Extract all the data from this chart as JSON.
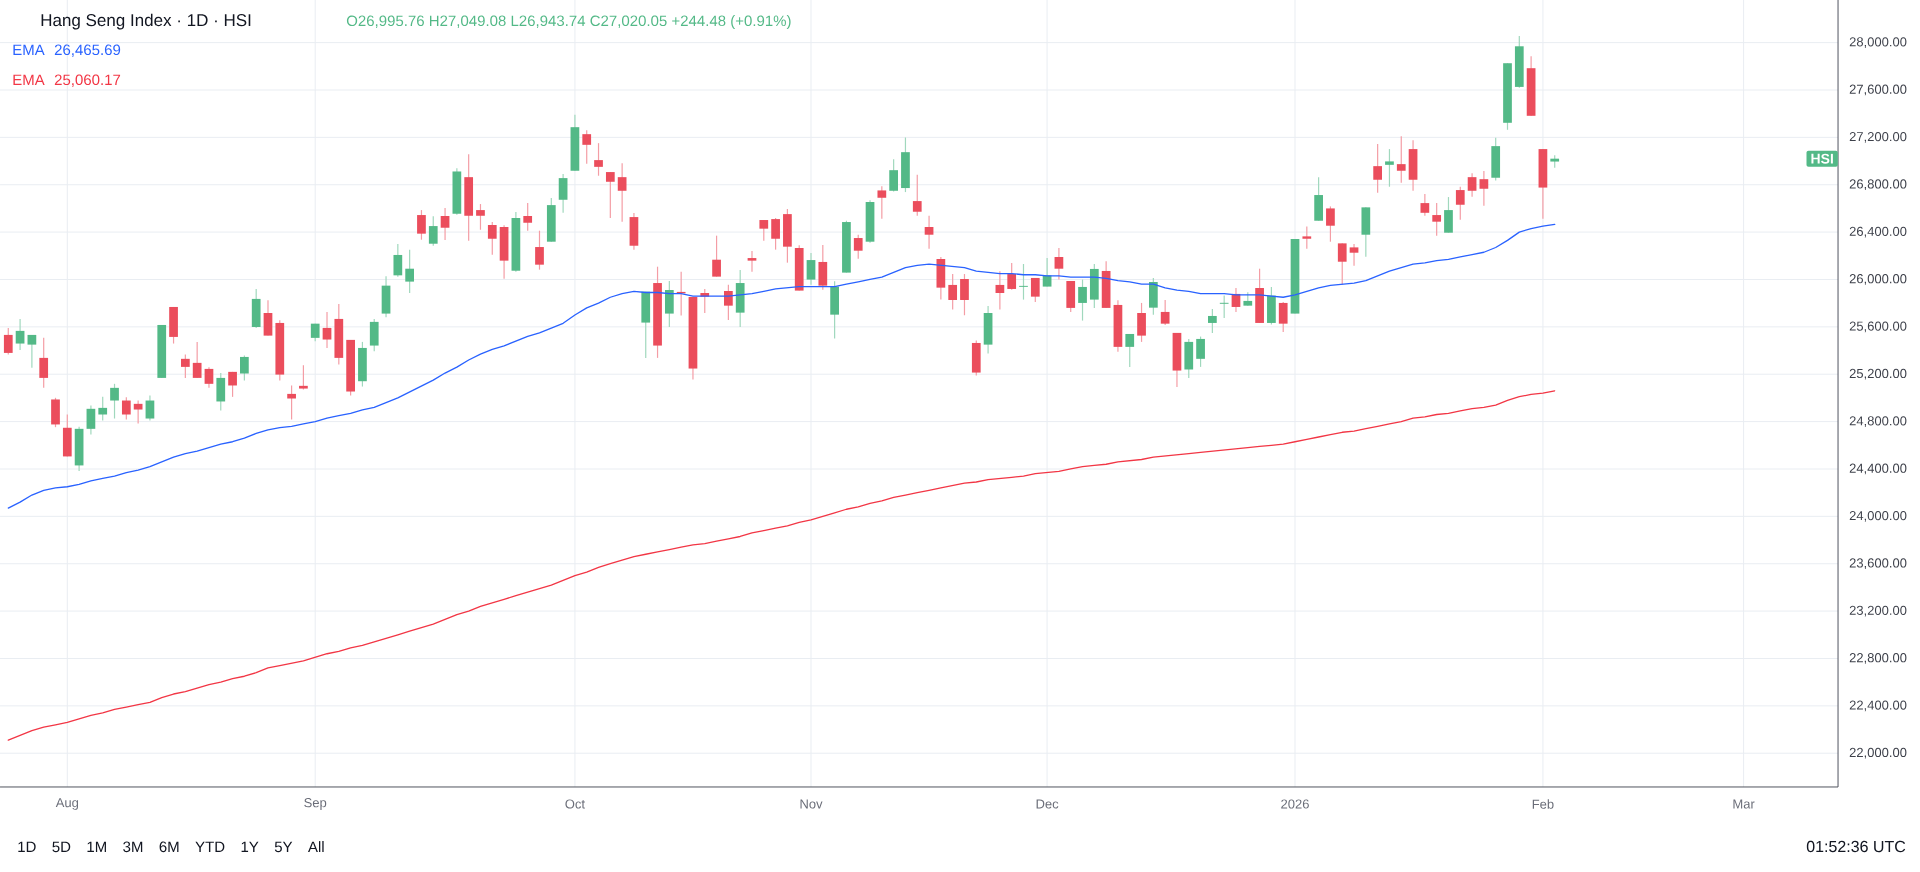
{
  "chart_data": {
    "type": "candlestick",
    "title": "Hang Seng Index · 1D · HSI",
    "subtitle": "O26,995.76 H27,049.08 L26,943.74 C27,020.05 +244.48 (+0.91%)",
    "categories": [
      null,
      null,
      null,
      null,
      null,
      "Aug",
      null,
      null,
      null,
      null,
      null,
      null,
      null,
      null,
      null,
      null,
      null,
      null,
      null,
      null,
      null,
      null,
      null,
      null,
      null,
      null,
      "Sep",
      null,
      null,
      null,
      null,
      null,
      null,
      null,
      null,
      null,
      null,
      null,
      null,
      null,
      null,
      null,
      null,
      null,
      null,
      null,
      null,
      null,
      "Oct",
      null,
      null,
      null,
      null,
      null,
      null,
      null,
      null,
      null,
      null,
      null,
      null,
      null,
      null,
      null,
      null,
      null,
      null,
      null,
      "Nov",
      null,
      null,
      null,
      null,
      null,
      null,
      null,
      null,
      null,
      null,
      null,
      null,
      null,
      null,
      null,
      null,
      null,
      null,
      null,
      "Dec",
      null,
      null,
      null,
      null,
      null,
      null,
      null,
      null,
      null,
      null,
      null,
      null,
      null,
      null,
      null,
      null,
      null,
      null,
      null,
      null,
      "2026",
      null,
      null,
      null,
      null,
      null,
      null,
      null,
      null,
      null,
      null,
      null,
      null,
      null,
      null,
      null,
      null,
      null,
      null,
      null,
      null,
      "Feb",
      null,
      null,
      null,
      null,
      null,
      null,
      null,
      null,
      null,
      null,
      null,
      null,
      null,
      null,
      null,
      null,
      "Mar",
      null,
      null,
      null,
      null,
      null,
      null,
      null
    ],
    "ohlc": [
      [
        25532,
        25591,
        25366,
        25380
      ],
      [
        25459,
        25667,
        25405,
        25566
      ],
      [
        25450,
        25532,
        25254,
        25532
      ],
      [
        25338,
        25507,
        25085,
        25169
      ],
      [
        24987,
        25001,
        24753,
        24776
      ],
      [
        24748,
        24860,
        24506,
        24506
      ],
      [
        24430,
        24756,
        24382,
        24739
      ],
      [
        24739,
        24936,
        24691,
        24908
      ],
      [
        24860,
        25009,
        24810,
        24916
      ],
      [
        24978,
        25119,
        24826,
        25085
      ],
      [
        24978,
        25006,
        24818,
        24860
      ],
      [
        24950,
        24978,
        24784,
        24902
      ],
      [
        24826,
        25020,
        24810,
        24978
      ],
      [
        25169,
        25616,
        25169,
        25616
      ],
      [
        25768,
        25768,
        25459,
        25515
      ],
      [
        25330,
        25366,
        25169,
        25262
      ],
      [
        25296,
        25473,
        25169,
        25169
      ],
      [
        25245,
        25259,
        25085,
        25119
      ],
      [
        24970,
        25211,
        24894,
        25169
      ],
      [
        25220,
        25220,
        25009,
        25105
      ],
      [
        25206,
        25358,
        25147,
        25346
      ],
      [
        25599,
        25920,
        25591,
        25836
      ],
      [
        25717,
        25824,
        25526,
        25526
      ],
      [
        25633,
        25656,
        25147,
        25197
      ],
      [
        25034,
        25105,
        24818,
        24995
      ],
      [
        25102,
        25276,
        25071,
        25079
      ],
      [
        25507,
        25627,
        25479,
        25627
      ],
      [
        25591,
        25726,
        25422,
        25493
      ],
      [
        25667,
        25793,
        25282,
        25338
      ],
      [
        25490,
        25490,
        25020,
        25054
      ],
      [
        25141,
        25473,
        25096,
        25422
      ],
      [
        25442,
        25667,
        25394,
        25642
      ],
      [
        25712,
        26027,
        25681,
        25948
      ],
      [
        26035,
        26299,
        26024,
        26207
      ],
      [
        25982,
        26252,
        25886,
        26091
      ],
      [
        26544,
        26586,
        26336,
        26387
      ],
      [
        26302,
        26533,
        26285,
        26451
      ],
      [
        26536,
        26603,
        26333,
        26437
      ],
      [
        26555,
        26940,
        26547,
        26912
      ],
      [
        26864,
        27058,
        26327,
        26538
      ],
      [
        26586,
        26637,
        26420,
        26538
      ],
      [
        26460,
        26485,
        26209,
        26344
      ],
      [
        26443,
        26457,
        26007,
        26159
      ],
      [
        26074,
        26569,
        26066,
        26519
      ],
      [
        26536,
        26645,
        26412,
        26479
      ],
      [
        26274,
        26412,
        26083,
        26125
      ],
      [
        26319,
        26687,
        26319,
        26628
      ],
      [
        26673,
        26890,
        26564,
        26856
      ],
      [
        26918,
        27390,
        26918,
        27286
      ],
      [
        27227,
        27261,
        26977,
        27137
      ],
      [
        27008,
        27151,
        26876,
        26951
      ],
      [
        26907,
        26907,
        26519,
        26825
      ],
      [
        26864,
        26982,
        26488,
        26749
      ],
      [
        26527,
        26561,
        26252,
        26285
      ],
      [
        25636,
        25897,
        25338,
        25897
      ],
      [
        25970,
        26108,
        25338,
        25442
      ],
      [
        25712,
        25987,
        25599,
        25911
      ],
      [
        25895,
        26066,
        25695,
        25883
      ],
      [
        25852,
        25852,
        25155,
        25248
      ],
      [
        25886,
        25920,
        25717,
        25855
      ],
      [
        26167,
        26370,
        26024,
        26024
      ],
      [
        25903,
        25956,
        25658,
        25779
      ],
      [
        25720,
        26080,
        25599,
        25970
      ],
      [
        26181,
        26240,
        26066,
        26159
      ],
      [
        26502,
        26502,
        26327,
        26429
      ],
      [
        26510,
        26519,
        26252,
        26344
      ],
      [
        26552,
        26595,
        26142,
        26277
      ],
      [
        26266,
        26288,
        25906,
        25906
      ],
      [
        25999,
        26224,
        25956,
        26164
      ],
      [
        26148,
        26291,
        25914,
        25948
      ],
      [
        25703,
        25985,
        25501,
        25940
      ],
      [
        26058,
        26496,
        26058,
        26485
      ],
      [
        26350,
        26378,
        26176,
        26243
      ],
      [
        26319,
        26670,
        26311,
        26654
      ],
      [
        26752,
        26788,
        26513,
        26690
      ],
      [
        26749,
        27016,
        26743,
        26923
      ],
      [
        26772,
        27199,
        26738,
        27075
      ],
      [
        26662,
        26884,
        26538,
        26572
      ],
      [
        26443,
        26538,
        26260,
        26378
      ],
      [
        26173,
        26190,
        25830,
        25931
      ],
      [
        25954,
        26046,
        25746,
        25827
      ],
      [
        26004,
        26046,
        25698,
        25827
      ],
      [
        25464,
        25484,
        25189,
        25214
      ],
      [
        25450,
        25777,
        25375,
        25717
      ],
      [
        25954,
        26069,
        25746,
        25886
      ],
      [
        26046,
        26139,
        25914,
        25920
      ],
      [
        25938,
        26131,
        25830,
        25946
      ],
      [
        26013,
        26013,
        25810,
        25855
      ],
      [
        25940,
        26181,
        25940,
        26035
      ],
      [
        26190,
        26266,
        25999,
        26091
      ],
      [
        25987,
        25987,
        25726,
        25760
      ],
      [
        25802,
        25999,
        25653,
        25937
      ],
      [
        25830,
        26131,
        25760,
        26089
      ],
      [
        26072,
        26153,
        25760,
        25760
      ],
      [
        25785,
        25824,
        25389,
        25431
      ],
      [
        25431,
        25540,
        25262,
        25540
      ],
      [
        25717,
        25802,
        25473,
        25526
      ],
      [
        25762,
        26013,
        25703,
        25979
      ],
      [
        25726,
        25827,
        25616,
        25627
      ],
      [
        25549,
        25549,
        25093,
        25231
      ],
      [
        25240,
        25498,
        25169,
        25473
      ],
      [
        25330,
        25518,
        25262,
        25498
      ],
      [
        25633,
        25751,
        25549,
        25692
      ],
      [
        25795,
        25864,
        25675,
        25803
      ],
      [
        25878,
        25928,
        25726,
        25768
      ],
      [
        25779,
        25892,
        25779,
        25819
      ],
      [
        25928,
        26091,
        25633,
        25633
      ],
      [
        25633,
        25937,
        25619,
        25864
      ],
      [
        25802,
        25810,
        25557,
        25627
      ],
      [
        25712,
        26342,
        25712,
        26342
      ],
      [
        26364,
        26448,
        26260,
        26344
      ],
      [
        26496,
        26864,
        26496,
        26713
      ],
      [
        26600,
        26617,
        26319,
        26454
      ],
      [
        26305,
        26305,
        25956,
        26150
      ],
      [
        26271,
        26299,
        26117,
        26226
      ],
      [
        26378,
        26609,
        26193,
        26609
      ],
      [
        26957,
        27143,
        26732,
        26842
      ],
      [
        26968,
        27101,
        26783,
        26997
      ],
      [
        26974,
        27210,
        26817,
        26918
      ],
      [
        27101,
        27176,
        26749,
        26842
      ],
      [
        26645,
        26721,
        26538,
        26563
      ],
      [
        26544,
        26645,
        26370,
        26488
      ],
      [
        26395,
        26696,
        26395,
        26586
      ],
      [
        26755,
        26783,
        26505,
        26631
      ],
      [
        26864,
        26898,
        26698,
        26749
      ],
      [
        26847,
        26915,
        26623,
        26766
      ],
      [
        26859,
        27196,
        26836,
        27126
      ],
      [
        27323,
        27826,
        27264,
        27826
      ],
      [
        27626,
        28056,
        27618,
        27969
      ],
      [
        27784,
        27885,
        27382,
        27382
      ],
      [
        27101,
        27101,
        26513,
        26776
      ],
      [
        26995.76,
        27049.08,
        26943.74,
        27020.05
      ],
      null,
      null,
      null,
      null,
      null,
      null,
      null,
      null,
      null,
      null,
      null,
      null,
      null,
      null,
      null,
      null,
      null,
      null,
      null,
      null,
      null,
      null,
      null
    ],
    "colors": [
      "#eb4d5c",
      "#53b987",
      "#53b987",
      "#eb4d5c",
      "#eb4d5c",
      "#eb4d5c",
      "#53b987",
      "#53b987",
      "#53b987",
      "#53b987",
      "#eb4d5c",
      "#eb4d5c",
      "#53b987",
      "#53b987",
      "#eb4d5c",
      "#eb4d5c",
      "#eb4d5c",
      "#eb4d5c",
      "#53b987",
      "#eb4d5c",
      "#53b987",
      "#53b987",
      "#eb4d5c",
      "#eb4d5c",
      "#eb4d5c",
      "#eb4d5c",
      "#53b987",
      "#eb4d5c",
      "#eb4d5c",
      "#eb4d5c",
      "#53b987",
      "#53b987",
      "#53b987",
      "#53b987",
      "#53b987",
      "#eb4d5c",
      "#53b987",
      "#eb4d5c",
      "#53b987",
      "#eb4d5c",
      "#eb4d5c",
      "#eb4d5c",
      "#eb4d5c",
      "#53b987",
      "#eb4d5c",
      "#eb4d5c",
      "#53b987",
      "#53b987",
      "#53b987",
      "#eb4d5c",
      "#eb4d5c",
      "#eb4d5c",
      "#eb4d5c",
      "#eb4d5c",
      "#53b987",
      "#eb4d5c",
      "#53b987",
      "#eb4d5c",
      "#eb4d5c",
      "#eb4d5c",
      "#eb4d5c",
      "#eb4d5c",
      "#53b987",
      "#eb4d5c",
      "#eb4d5c",
      "#eb4d5c",
      "#eb4d5c",
      "#eb4d5c",
      "#53b987",
      "#eb4d5c",
      "#53b987",
      "#53b987",
      "#eb4d5c",
      "#53b987",
      "#eb4d5c",
      "#53b987",
      "#53b987",
      "#eb4d5c",
      "#eb4d5c",
      "#eb4d5c",
      "#eb4d5c",
      "#eb4d5c",
      "#eb4d5c",
      "#53b987",
      "#eb4d5c",
      "#eb4d5c",
      "#53b987",
      "#eb4d5c",
      "#53b987",
      "#eb4d5c",
      "#eb4d5c",
      "#53b987",
      "#53b987",
      "#eb4d5c",
      "#eb4d5c",
      "#53b987",
      "#eb4d5c",
      "#53b987",
      "#eb4d5c",
      "#eb4d5c",
      "#53b987",
      "#53b987",
      "#53b987",
      "#53b987",
      "#eb4d5c",
      "#53b987",
      "#eb4d5c",
      "#53b987",
      "#eb4d5c",
      "#53b987",
      "#eb4d5c",
      "#53b987",
      "#eb4d5c",
      "#eb4d5c",
      "#eb4d5c",
      "#53b987",
      "#eb4d5c",
      "#53b987",
      "#eb4d5c",
      "#eb4d5c",
      "#eb4d5c",
      "#eb4d5c",
      "#53b987",
      "#eb4d5c",
      "#eb4d5c",
      "#eb4d5c",
      "#53b987",
      "#53b987",
      "#53b987",
      "#eb4d5c",
      "#eb4d5c",
      "#53b987",
      null,
      null,
      null,
      null,
      null,
      null,
      null,
      null,
      null,
      null,
      null,
      null,
      null,
      null,
      null,
      null,
      null,
      null,
      null,
      null,
      null,
      null,
      null
    ],
    "series": [
      {
        "name": "EMA",
        "type": "line",
        "color": "#2962ff",
        "values": [
          24070,
          24120,
          24180,
          24220,
          24240,
          24250,
          24270,
          24300,
          24320,
          24340,
          24370,
          24390,
          24420,
          24460,
          24500,
          24530,
          24550,
          24580,
          24610,
          24630,
          24660,
          24700,
          24730,
          24750,
          24760,
          24780,
          24800,
          24830,
          24850,
          24870,
          24900,
          24920,
          24960,
          25000,
          25050,
          25100,
          25150,
          25210,
          25260,
          25320,
          25370,
          25410,
          25440,
          25480,
          25520,
          25550,
          25590,
          25630,
          25700,
          25760,
          25800,
          25850,
          25880,
          25900,
          25890,
          25890,
          25880,
          25880,
          25860,
          25860,
          25860,
          25860,
          25870,
          25880,
          25900,
          25920,
          25930,
          25940,
          25940,
          25940,
          25940,
          25960,
          25980,
          26000,
          26020,
          26060,
          26100,
          26120,
          26130,
          26120,
          26110,
          26100,
          26070,
          26060,
          26050,
          26050,
          26040,
          26040,
          26030,
          26030,
          26020,
          26020,
          26020,
          26010,
          25990,
          25980,
          25960,
          25960,
          25930,
          25910,
          25900,
          25880,
          25880,
          25880,
          25870,
          25870,
          25870,
          25860,
          25850,
          25870,
          25900,
          25930,
          25950,
          25960,
          25970,
          25990,
          26030,
          26070,
          26100,
          26130,
          26140,
          26160,
          26170,
          26190,
          26210,
          26230,
          26270,
          26330,
          26400,
          26430,
          26450,
          26465.69,
          null,
          null,
          null,
          null,
          null,
          null,
          null,
          null,
          null,
          null,
          null,
          null,
          null,
          null,
          null,
          null,
          null,
          null,
          null,
          null,
          null,
          null,
          null
        ]
      },
      {
        "name": "EMA",
        "type": "line",
        "color": "#f23645",
        "values": [
          22110,
          22150,
          22190,
          22220,
          22240,
          22260,
          22290,
          22320,
          22340,
          22370,
          22390,
          22410,
          22430,
          22470,
          22500,
          22520,
          22550,
          22580,
          22600,
          22630,
          22650,
          22680,
          22720,
          22740,
          22760,
          22780,
          22810,
          22840,
          22860,
          22890,
          22910,
          22940,
          22970,
          23000,
          23030,
          23060,
          23090,
          23130,
          23170,
          23200,
          23240,
          23270,
          23300,
          23330,
          23360,
          23390,
          23420,
          23460,
          23500,
          23530,
          23570,
          23600,
          23630,
          23660,
          23680,
          23700,
          23720,
          23740,
          23760,
          23770,
          23790,
          23810,
          23830,
          23860,
          23880,
          23900,
          23920,
          23950,
          23970,
          24000,
          24030,
          24060,
          24080,
          24110,
          24130,
          24160,
          24180,
          24200,
          24220,
          24240,
          24260,
          24280,
          24290,
          24310,
          24320,
          24330,
          24340,
          24360,
          24370,
          24380,
          24400,
          24420,
          24430,
          24440,
          24460,
          24470,
          24480,
          24500,
          24510,
          24520,
          24530,
          24540,
          24550,
          24560,
          24570,
          24580,
          24590,
          24600,
          24610,
          24630,
          24650,
          24670,
          24690,
          24710,
          24720,
          24740,
          24760,
          24780,
          24800,
          24830,
          24840,
          24860,
          24870,
          24890,
          24910,
          24920,
          24940,
          24980,
          25010,
          25030,
          25040,
          25060.17,
          null,
          null,
          null,
          null,
          null,
          null,
          null,
          null,
          null,
          null,
          null,
          null,
          null,
          null,
          null,
          null,
          null,
          null,
          null,
          null,
          null,
          null,
          null
        ]
      }
    ],
    "ylim": [
      21715,
      28360
    ],
    "yticks": [
      {
        "value": 22000,
        "label": "22,000.00"
      },
      {
        "value": 22400,
        "label": "22,400.00"
      },
      {
        "value": 22800,
        "label": "22,800.00"
      },
      {
        "value": 23200,
        "label": "23,200.00"
      },
      {
        "value": 23600,
        "label": "23,600.00"
      },
      {
        "value": 24000,
        "label": "24,000.00"
      },
      {
        "value": 24400,
        "label": "24,400.00"
      },
      {
        "value": 24800,
        "label": "24,800.00"
      },
      {
        "value": 25200,
        "label": "25,200.00"
      },
      {
        "value": 25600,
        "label": "25,600.00"
      },
      {
        "value": 26000,
        "label": "26,000.00"
      },
      {
        "value": 26400,
        "label": "26,400.00"
      },
      {
        "value": 26800,
        "label": "26,800.00"
      },
      {
        "value": 27200,
        "label": "27,200.00"
      },
      {
        "value": 27600,
        "label": "27,600.00"
      },
      {
        "value": 28000,
        "label": "28,000.00"
      }
    ],
    "grid": true,
    "legend": "top left",
    "annotations": [
      "26,465.69",
      "25,060.17",
      {
        "text": "HSI",
        "y": 27020.05
      },
      "1D",
      "5D",
      "1M",
      "3M",
      "6M",
      "YTD",
      "1Y",
      "5Y",
      "All",
      "01:52:36 UTC"
    ]
  }
}
